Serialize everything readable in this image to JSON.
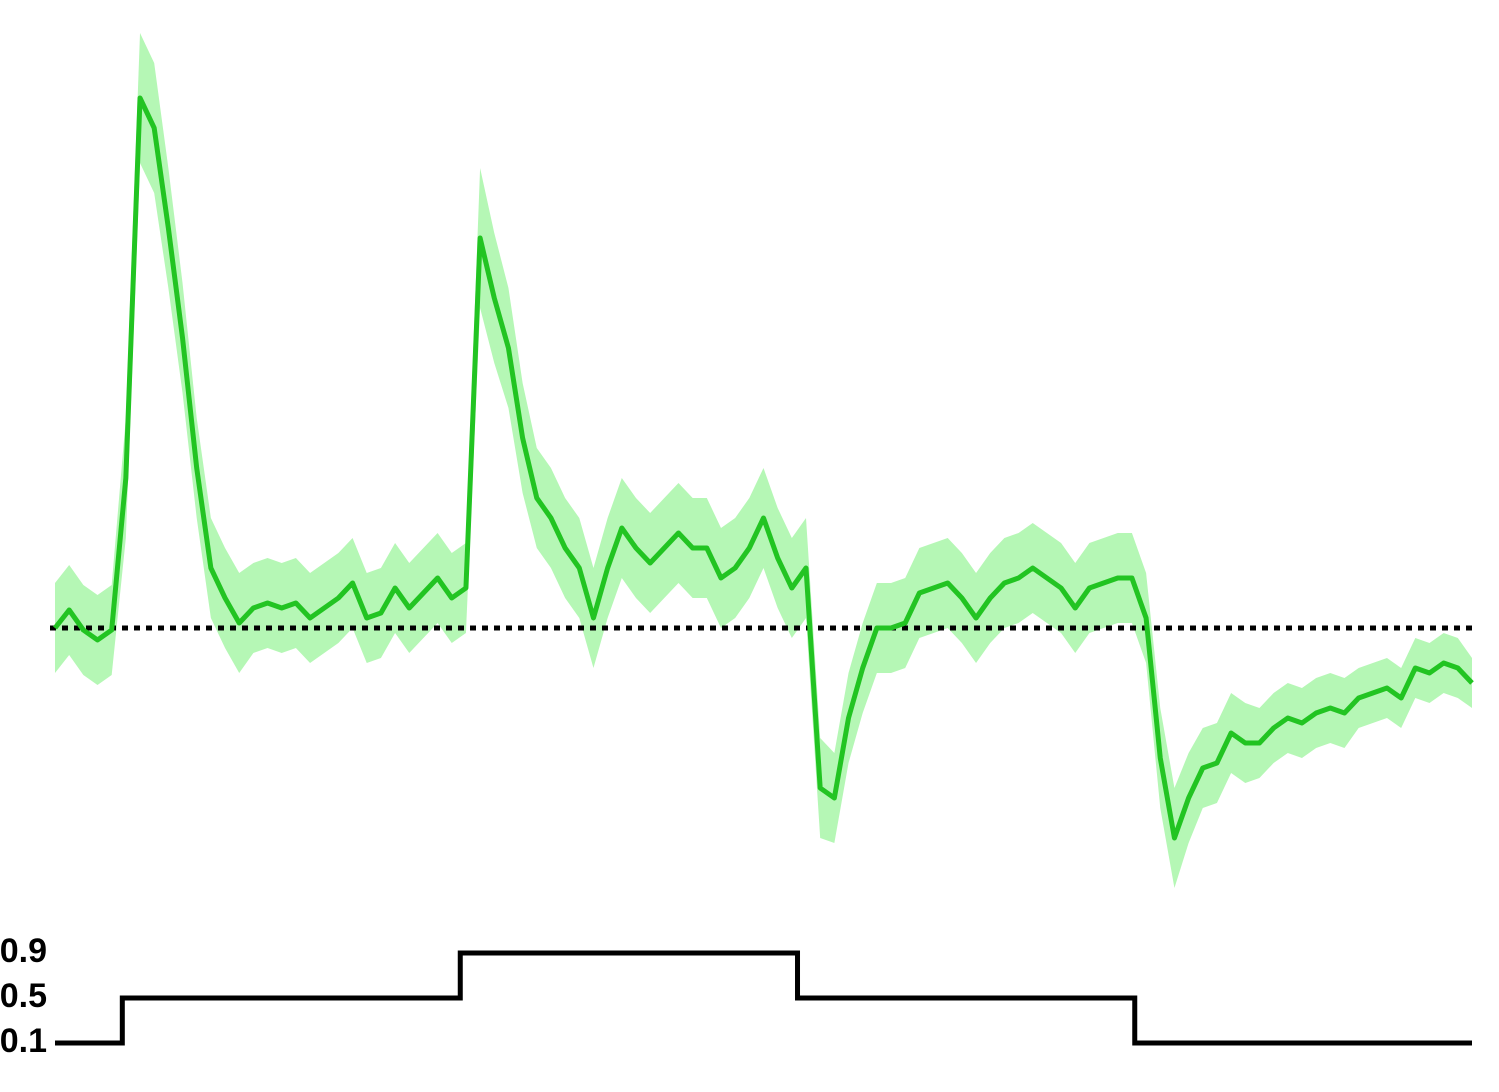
{
  "chart_data": [
    {
      "type": "line",
      "x": [
        0,
        1,
        2,
        3,
        4,
        5,
        6,
        7,
        8,
        9,
        10,
        11,
        12,
        13,
        14,
        15,
        16,
        17,
        18,
        19,
        20,
        21,
        22,
        23,
        24,
        25,
        26,
        27,
        28,
        29,
        30,
        31,
        32,
        33,
        34,
        35,
        36,
        37,
        38,
        39,
        40,
        41,
        42,
        43,
        44,
        45,
        46,
        47,
        48,
        49,
        50,
        51,
        52,
        53,
        54,
        55,
        56,
        57,
        58,
        59,
        60,
        61,
        62,
        63,
        64,
        65,
        66,
        67,
        68,
        69,
        70,
        71,
        72,
        73,
        74,
        75,
        76,
        77,
        78,
        79,
        80,
        81,
        82,
        83,
        84,
        85,
        86,
        87,
        88,
        89,
        90,
        91,
        92,
        93,
        94,
        95,
        96,
        97,
        98,
        99,
        100
      ],
      "series": [
        {
          "color": "#22c422",
          "band_color": "#b5f7b5",
          "values": [
            0.0,
            0.18,
            -0.02,
            -0.12,
            -0.02,
            1.5,
            5.3,
            5.0,
            4.0,
            2.9,
            1.6,
            0.6,
            0.3,
            0.05,
            0.2,
            0.25,
            0.2,
            0.25,
            0.1,
            0.2,
            0.3,
            0.45,
            0.1,
            0.15,
            0.4,
            0.2,
            0.35,
            0.5,
            0.3,
            0.4,
            3.9,
            3.3,
            2.8,
            1.9,
            1.3,
            1.1,
            0.8,
            0.6,
            0.1,
            0.6,
            1.0,
            0.8,
            0.65,
            0.8,
            0.95,
            0.8,
            0.8,
            0.5,
            0.6,
            0.8,
            1.1,
            0.7,
            0.4,
            0.6,
            -1.6,
            -1.7,
            -0.9,
            -0.4,
            0.0,
            0.0,
            0.05,
            0.35,
            0.4,
            0.45,
            0.3,
            0.1,
            0.3,
            0.45,
            0.5,
            0.6,
            0.5,
            0.4,
            0.2,
            0.4,
            0.45,
            0.5,
            0.5,
            0.1,
            -1.3,
            -2.1,
            -1.7,
            -1.4,
            -1.35,
            -1.05,
            -1.15,
            -1.15,
            -1.0,
            -0.9,
            -0.95,
            -0.85,
            -0.8,
            -0.85,
            -0.7,
            -0.65,
            -0.6,
            -0.7,
            -0.4,
            -0.45,
            -0.35,
            -0.4,
            -0.55
          ],
          "error": [
            0.45,
            0.45,
            0.45,
            0.45,
            0.45,
            0.6,
            0.65,
            0.65,
            0.6,
            0.55,
            0.5,
            0.5,
            0.5,
            0.5,
            0.45,
            0.45,
            0.45,
            0.45,
            0.45,
            0.45,
            0.45,
            0.45,
            0.45,
            0.45,
            0.45,
            0.45,
            0.45,
            0.45,
            0.45,
            0.45,
            0.7,
            0.65,
            0.6,
            0.55,
            0.5,
            0.5,
            0.5,
            0.5,
            0.5,
            0.5,
            0.5,
            0.5,
            0.5,
            0.5,
            0.5,
            0.5,
            0.5,
            0.5,
            0.5,
            0.5,
            0.5,
            0.5,
            0.5,
            0.5,
            0.5,
            0.45,
            0.45,
            0.45,
            0.45,
            0.45,
            0.45,
            0.45,
            0.45,
            0.45,
            0.45,
            0.45,
            0.45,
            0.45,
            0.45,
            0.45,
            0.45,
            0.45,
            0.45,
            0.45,
            0.45,
            0.45,
            0.45,
            0.45,
            0.5,
            0.5,
            0.45,
            0.4,
            0.4,
            0.4,
            0.4,
            0.35,
            0.35,
            0.35,
            0.35,
            0.35,
            0.35,
            0.35,
            0.3,
            0.3,
            0.3,
            0.3,
            0.3,
            0.3,
            0.3,
            0.3,
            0.25
          ]
        }
      ],
      "baseline": 0,
      "xlim": [
        0,
        100
      ],
      "ylim": [
        -2.7,
        6.2
      ]
    },
    {
      "type": "step",
      "x": [
        0,
        4.75,
        28.6,
        52.4,
        76.2,
        100
      ],
      "values": [
        0.1,
        0.5,
        0.9,
        0.5,
        0.1,
        0.1
      ],
      "color": "#000000",
      "xlim": [
        0,
        100
      ],
      "ylim": [
        0.1,
        0.9
      ],
      "yticks": [
        0.1,
        0.5,
        0.9
      ]
    }
  ]
}
